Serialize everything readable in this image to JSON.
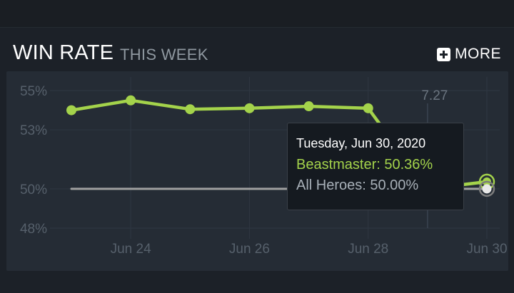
{
  "widget": {
    "title": "WIN RATE",
    "subtitle": "THIS WEEK",
    "more_label": "MORE",
    "more_icon": "plus-square-icon"
  },
  "tooltip": {
    "date": "Tuesday, Jun 30, 2020",
    "series_line": "Beastmaster: 50.36%",
    "all_line": "All Heroes: 50.00%"
  },
  "colors": {
    "background": "#1c2128",
    "panel": "#252c35",
    "series": "#a4d34b",
    "baseline": "#a0a0a0",
    "axis_text": "#5b6470"
  },
  "chart_data": {
    "type": "line",
    "title": "WIN RATE",
    "subtitle": "THIS WEEK",
    "ylim": [
      47.5,
      55.5
    ],
    "yticks": [
      {
        "value": 55,
        "label": "55%"
      },
      {
        "value": 53,
        "label": "53%"
      },
      {
        "value": 50,
        "label": "50%"
      },
      {
        "value": 48,
        "label": "48%"
      }
    ],
    "xlim": [
      0,
      7
    ],
    "xticks": [
      {
        "value": 1,
        "label": "Jun 24"
      },
      {
        "value": 3,
        "label": "Jun 26"
      },
      {
        "value": 5,
        "label": "Jun 28"
      },
      {
        "value": 7,
        "label": "Jun 30"
      }
    ],
    "x": [
      0,
      1,
      2,
      3,
      4,
      5,
      6,
      7
    ],
    "series": [
      {
        "name": "Beastmaster",
        "values": [
          54.0,
          54.5,
          54.05,
          54.1,
          54.2,
          54.1,
          50.0,
          50.36
        ]
      },
      {
        "name": "All Heroes",
        "values": [
          50.0,
          50.0,
          50.0,
          50.0,
          50.0,
          50.0,
          50.0,
          50.0
        ]
      }
    ],
    "annotation": {
      "x": 6,
      "label": "7.27"
    },
    "grid": true
  }
}
